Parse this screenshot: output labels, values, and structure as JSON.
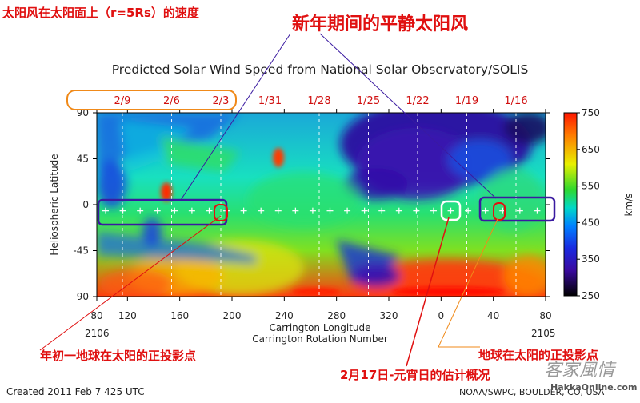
{
  "annotations": {
    "top_left": "太阳风在太阳面上（r=5Rs）的速度",
    "top_center": "新年期间的平静太阳风",
    "bottom_left": "年初一地球在太阳的正投影点",
    "bottom_center": "2月17日-元宵日的估计概况",
    "bottom_right": "地球在太阳的正投影点"
  },
  "footer": {
    "created": "Created 2011 Feb 7 425 UTC",
    "credit": "NOAA/SWPC, BOULDER, CO, USA",
    "watermark_script": "客家風情",
    "watermark_url": "HakkaOnline.com"
  },
  "colors": {
    "annotation_red": "#e01010",
    "date_red": "#d01010",
    "orange_box": "#f08a1a",
    "purple_box": "#3a1aa0",
    "white_box": "#ffffff"
  },
  "chart_data": {
    "type": "heatmap",
    "title": "Predicted Solar Wind Speed from National Solar Observatory/SOLIS",
    "xlabel": "Carrington Longitude",
    "xlabel2": "Carrington Rotation Number",
    "ylabel": "Heliospheric Latitude",
    "x_tick_labels": [
      "80",
      "120",
      "160",
      "200",
      "240",
      "280",
      "320",
      "0",
      "40",
      "80"
    ],
    "y_tick_labels": [
      "90",
      "45",
      "0",
      "-45",
      "-90"
    ],
    "ylim": [
      -90,
      90
    ],
    "rotation_left": "2106",
    "rotation_right": "2105",
    "top_date_labels": [
      "2/9",
      "2/6",
      "2/3",
      "1/31",
      "1/28",
      "1/25",
      "1/22",
      "1/19",
      "1/16"
    ],
    "colorbar": {
      "label": "km/s",
      "ticks": [
        "750",
        "650",
        "550",
        "450",
        "350",
        "250"
      ],
      "range": [
        250,
        750
      ]
    },
    "earth_track_latitude": -6
  }
}
